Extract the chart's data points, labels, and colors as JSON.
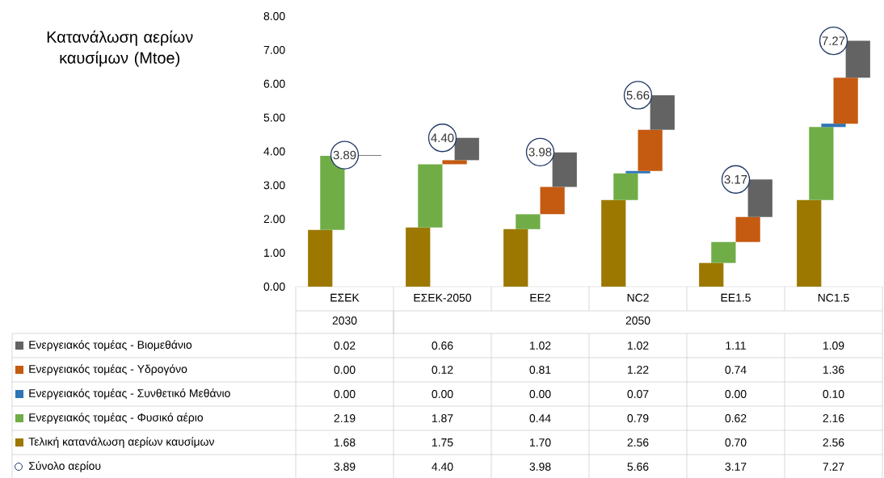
{
  "chart_data": {
    "type": "bar",
    "stacked": true,
    "ylabel": "Κατανάλωση αερίων καυσίμων (Mtoe)",
    "categories": [
      "ΕΣΕΚ",
      "ΕΣΕΚ-2050",
      "EE2",
      "NC2",
      "EE1.5",
      "NC1.5"
    ],
    "annotations": [
      "2030",
      "2050"
    ],
    "series": [
      {
        "name": "Τελική κατανάλωση αερίων καυσίμων",
        "color": "#9c7800",
        "values": [
          1.68,
          1.75,
          1.7,
          2.56,
          0.7,
          2.56
        ],
        "value_labels": [
          "1.68",
          "1.75",
          "1.70",
          "2.56",
          "0.70",
          "2.56"
        ]
      },
      {
        "name": "Ενεργειακός τομέας - Φυσικό αέριο",
        "color": "#70ad47",
        "values": [
          2.19,
          1.87,
          0.44,
          0.79,
          0.62,
          2.16
        ],
        "value_labels": [
          "2.19",
          "1.87",
          "0.44",
          "0.79",
          "0.62",
          "2.16"
        ]
      },
      {
        "name": "Ενεργειακός τομέας - Συνθετικό Μεθάνιο",
        "color": "#2e75b6",
        "values": [
          0.0,
          0.0,
          0.0,
          0.07,
          0.0,
          0.1
        ],
        "value_labels": [
          "0.00",
          "0.00",
          "0.00",
          "0.07",
          "0.00",
          "0.10"
        ]
      },
      {
        "name": "Ενεργειακός τομέας - Υδρογόνο",
        "color": "#c55a11",
        "values": [
          0.0,
          0.12,
          0.81,
          1.22,
          0.74,
          1.36
        ],
        "value_labels": [
          "0.00",
          "0.12",
          "0.81",
          "1.22",
          "0.74",
          "1.36"
        ]
      },
      {
        "name": "Ενεργειακός τομέας - Βιομεθάνιο",
        "color": "#636363",
        "values": [
          0.02,
          0.66,
          1.02,
          1.02,
          1.11,
          1.09
        ],
        "value_labels": [
          "0.02",
          "0.66",
          "1.02",
          "1.02",
          "1.11",
          "1.09"
        ]
      },
      {
        "name": "Σύνολο αερίου",
        "type": "scatter",
        "marker": "circle",
        "color": "#1f3864",
        "values": [
          3.89,
          4.4,
          3.98,
          5.66,
          3.17,
          7.27
        ],
        "value_labels": [
          "3.89",
          "4.40",
          "3.98",
          "5.66",
          "3.17",
          "7.27"
        ]
      }
    ],
    "ylim": [
      0,
      8
    ],
    "yticks": [
      {
        "value": 0,
        "label": "0.00"
      },
      {
        "value": 1,
        "label": "1.00"
      },
      {
        "value": 2,
        "label": "2.00"
      },
      {
        "value": 3,
        "label": "3.00"
      },
      {
        "value": 4,
        "label": "4.00"
      },
      {
        "value": 5,
        "label": "5.00"
      },
      {
        "value": 6,
        "label": "6.00"
      },
      {
        "value": 7,
        "label": "7.00"
      },
      {
        "value": 8,
        "label": "8.00"
      }
    ],
    "legend": "bottom"
  }
}
